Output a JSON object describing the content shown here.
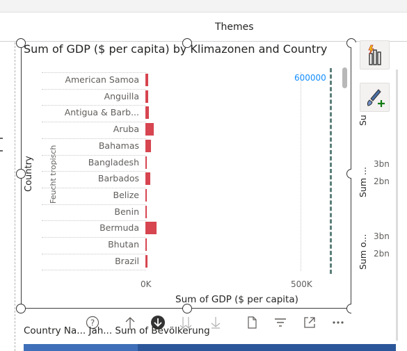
{
  "ribbon": {
    "themes_label": "Themes"
  },
  "visual": {
    "title": "Sum of GDP ($ per capita) by Klimazonen and Country",
    "y_axis_title": "Country",
    "group_label": "Feucht tropisch",
    "x_axis_title": "Sum of GDP ($ per capita)",
    "reference_label": "600000"
  },
  "chart_data": {
    "type": "bar",
    "orientation": "horizontal",
    "title": "Sum of GDP ($ per capita) by Klimazonen and Country",
    "xlabel": "Sum of GDP ($ per capita)",
    "ylabel": "Country",
    "group": "Feucht tropisch",
    "categories": [
      "American Samoa",
      "Anguilla",
      "Antigua & Barb...",
      "Aruba",
      "Bahamas",
      "Bangladesh",
      "Barbados",
      "Belize",
      "Benin",
      "Bermuda",
      "Bhutan",
      "Brazil"
    ],
    "values": [
      8000,
      8500,
      11000,
      28000,
      18000,
      1000,
      16000,
      4000,
      1000,
      36000,
      2000,
      7500
    ],
    "x_ticks": [
      "0K",
      "500K"
    ],
    "xlim": [
      0,
      600000
    ],
    "reference_line": 600000,
    "bar_color": "#d64550",
    "grid": true
  },
  "right_panel": {
    "top_label": "2bn",
    "labels_a": [
      "3bn",
      "2bn"
    ],
    "labels_b": [
      "3bn",
      "2bn"
    ],
    "vert_a": "Su",
    "vert_b": "Sum ...",
    "vert_c": "Sum o..."
  },
  "toolbar": {
    "icons": [
      "help-icon",
      "drill-up-icon",
      "drill-down-icon",
      "expand-all-icon",
      "expand-next-icon",
      "export-icon",
      "filter-icon",
      "focus-mode-icon",
      "more-options-icon"
    ]
  },
  "field_well": {
    "text": "Country Na...  Jah...  Sum of Bevölkerung"
  }
}
